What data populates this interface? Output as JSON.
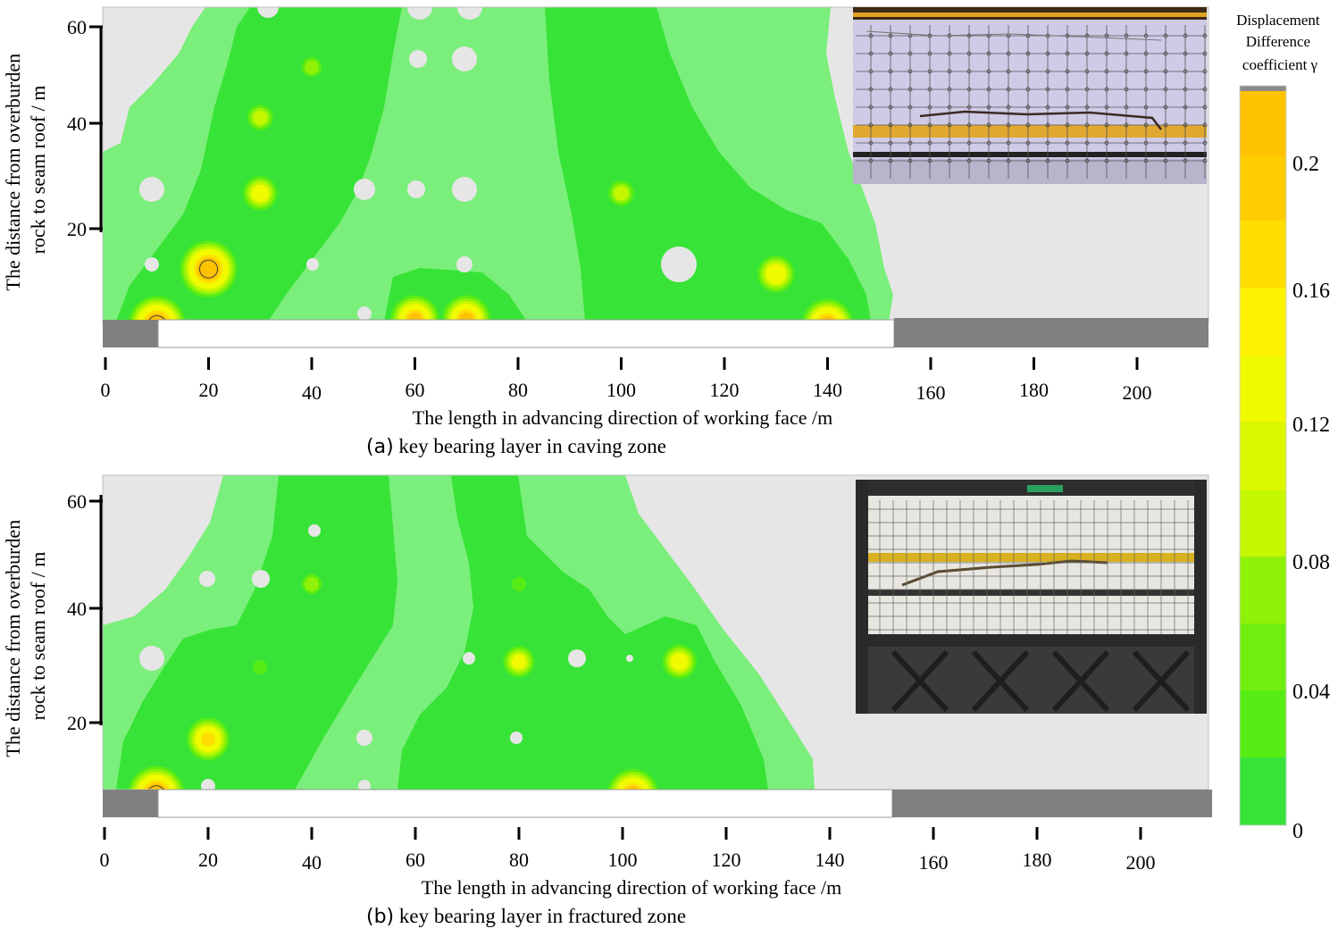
{
  "colors": {
    "background_zero": "#e6e6e6",
    "level_1": "#7bef7b",
    "level_2": "#37e337",
    "level_3": "#57ec15",
    "level_4": "#90f209",
    "level_5": "#c5f700",
    "level_6": "#f1fb00",
    "level_7": "#ffde00",
    "level_8": "#ffc200",
    "coal_seam": "#808080",
    "contour_line": "#444444"
  },
  "legend": {
    "title_lines": [
      "Displacement",
      "Difference",
      "coefficient γ"
    ],
    "tick_labels": [
      "0.2",
      "0.16",
      "0.12",
      "0.08",
      "0.04",
      "0"
    ],
    "tick_values": [
      0.2,
      0.16,
      0.12,
      0.08,
      0.04,
      0
    ]
  },
  "chart_data": [
    {
      "type": "heatmap",
      "caption_letter": "(a)",
      "caption_text": " key bearing layer in caving zone",
      "xlabel": "The length in advancing direction of working face /m",
      "ylabel_lines": [
        "The distance from overburden",
        "rock to seam roof / m"
      ],
      "xlim": [
        0,
        210
      ],
      "ylim": [
        0,
        64
      ],
      "x_ticks": [
        0,
        20,
        40,
        60,
        80,
        100,
        120,
        140,
        160,
        180,
        200
      ],
      "x_tick_labels": [
        "0",
        "20",
        "40",
        "60",
        "80",
        "100",
        "120",
        "140",
        "160",
        "180",
        "200"
      ],
      "y_ticks": [
        20,
        40,
        60
      ],
      "y_tick_labels": [
        "20",
        "40",
        "60"
      ],
      "coal_pillar_left": [
        0,
        10
      ],
      "goaf": [
        10,
        150
      ],
      "coal_pillar_right": [
        150,
        210
      ],
      "inset": "photo of the physical model after mining",
      "hotspots": [
        {
          "x": 10,
          "y": 1,
          "value": 0.21
        },
        {
          "x": 20,
          "y": 12,
          "value": 0.21
        },
        {
          "x": 30,
          "y": 27,
          "value": 0.13
        },
        {
          "x": 30,
          "y": 42,
          "value": 0.1
        },
        {
          "x": 40,
          "y": 52,
          "value": 0.08
        },
        {
          "x": 60,
          "y": 2,
          "value": 0.18
        },
        {
          "x": 70,
          "y": 2,
          "value": 0.18
        },
        {
          "x": 100,
          "y": 27,
          "value": 0.1
        },
        {
          "x": 130,
          "y": 11,
          "value": 0.14
        },
        {
          "x": 140,
          "y": 1,
          "value": 0.19
        }
      ]
    },
    {
      "type": "heatmap",
      "caption_letter": "(b)",
      "caption_text": " key bearing layer in fractured zone",
      "xlabel": "The length in advancing direction of working face /m",
      "ylabel_lines": [
        "The distance from overburden",
        "rock to seam roof / m"
      ],
      "xlim": [
        0,
        210
      ],
      "ylim": [
        0,
        64
      ],
      "x_ticks": [
        0,
        20,
        40,
        60,
        80,
        100,
        120,
        140,
        160,
        180,
        200
      ],
      "x_tick_labels": [
        "0",
        "20",
        "40",
        "60",
        "80",
        "100",
        "120",
        "140",
        "160",
        "180",
        "200"
      ],
      "y_ticks": [
        20,
        40,
        60
      ],
      "y_tick_labels": [
        "20",
        "40",
        "60"
      ],
      "coal_pillar_left": [
        0,
        10
      ],
      "goaf": [
        10,
        150
      ],
      "coal_pillar_right": [
        150,
        210
      ],
      "inset": "photo of the physical model after mining",
      "hotspots": [
        {
          "x": 10,
          "y": 7,
          "value": 0.21
        },
        {
          "x": 20,
          "y": 17,
          "value": 0.16
        },
        {
          "x": 40,
          "y": 45,
          "value": 0.08
        },
        {
          "x": 80,
          "y": 31,
          "value": 0.12
        },
        {
          "x": 80,
          "y": 45,
          "value": 0.06
        },
        {
          "x": 102,
          "y": 7,
          "value": 0.19
        },
        {
          "x": 111,
          "y": 31,
          "value": 0.13
        },
        {
          "x": 30,
          "y": 30,
          "value": 0.06
        }
      ]
    }
  ]
}
